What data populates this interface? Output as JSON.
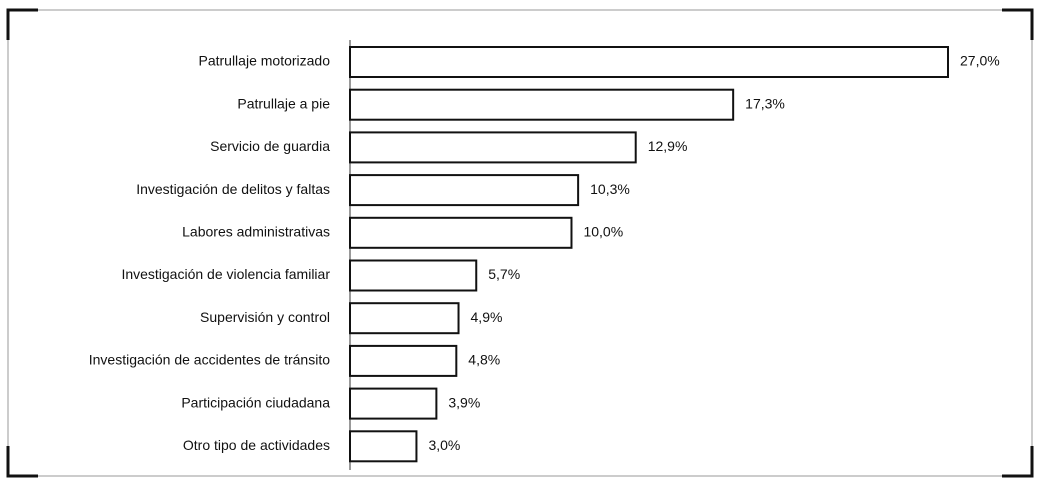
{
  "chart_data": {
    "type": "barh",
    "categories": [
      "Patrullaje motorizado",
      "Patrullaje a pie",
      "Servicio de guardia",
      "Investigación de delitos y faltas",
      "Labores administrativas",
      "Investigación de violencia familiar",
      "Supervisión y control",
      "Investigación de accidentes de tránsito",
      "Participación ciudadana",
      "Otro tipo de actividades"
    ],
    "values": [
      27.0,
      17.3,
      12.9,
      10.3,
      10.0,
      5.7,
      4.9,
      4.8,
      3.9,
      3.0
    ],
    "value_labels": [
      "27,0%",
      "17,3%",
      "12,9%",
      "10,3%",
      "10,0%",
      "5,7%",
      "4,9%",
      "4,8%",
      "3,9%",
      "3,0%"
    ],
    "color": "#ffffff"
  }
}
